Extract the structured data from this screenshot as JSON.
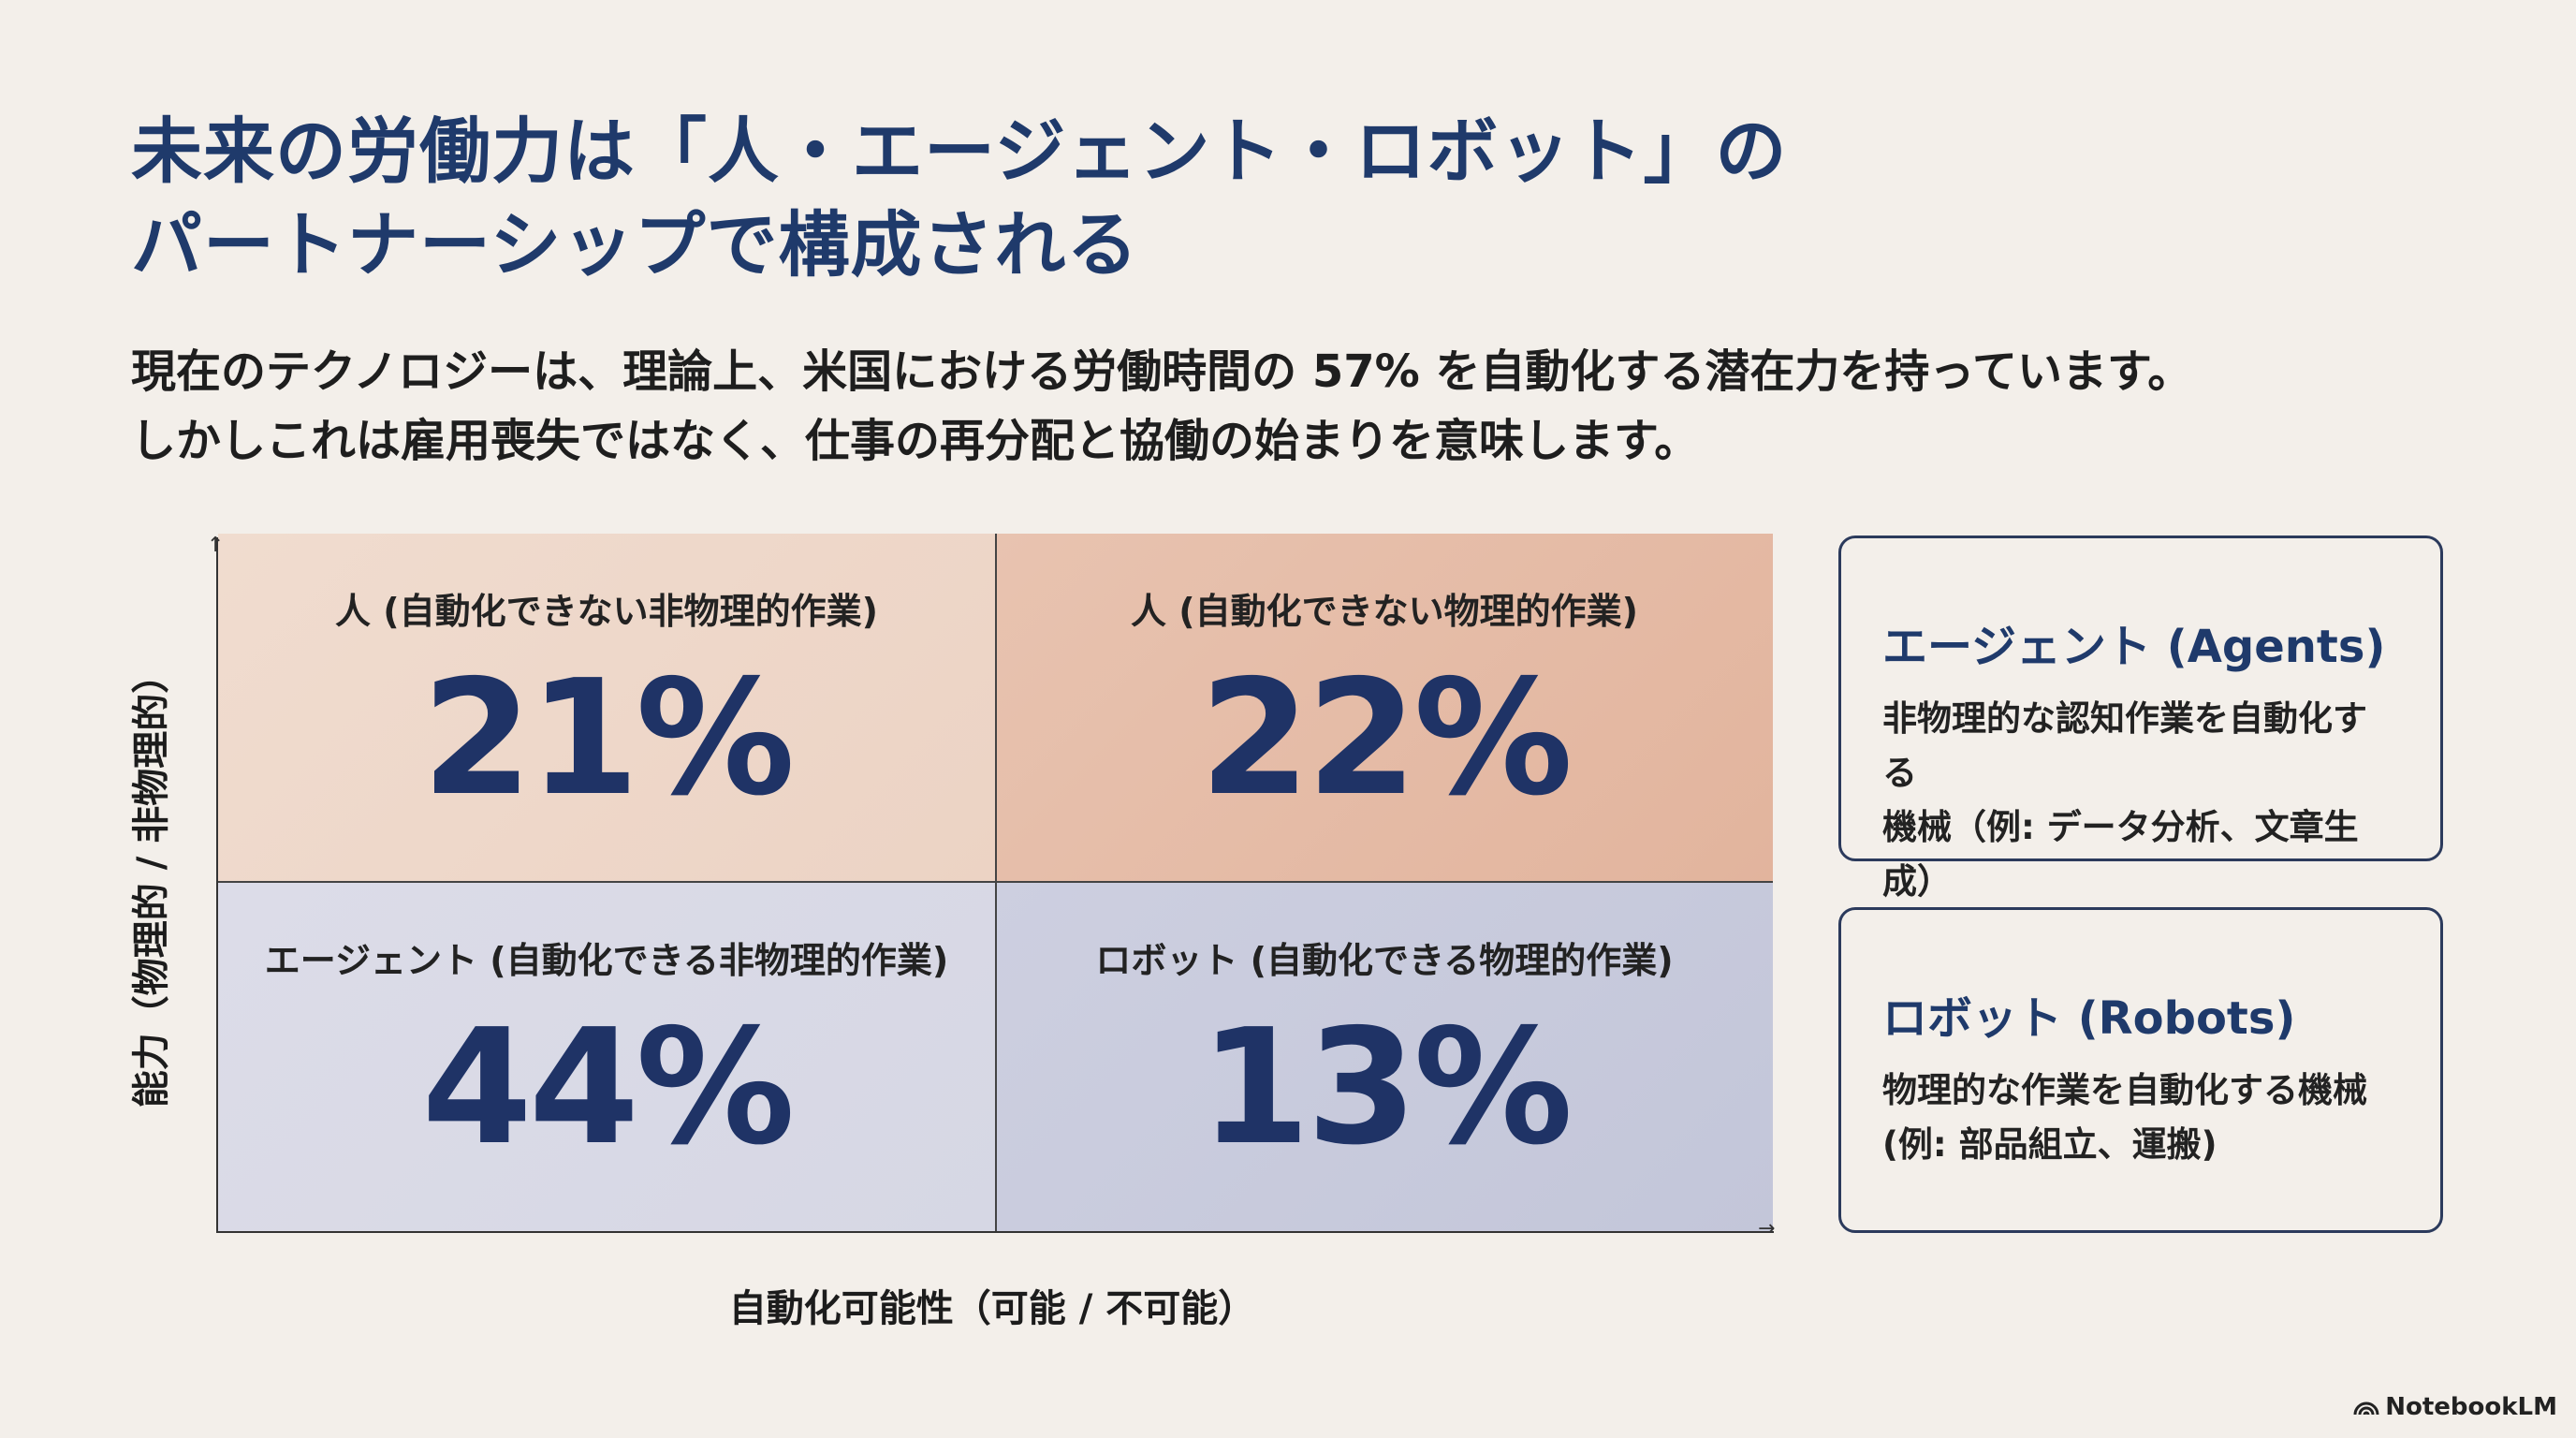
{
  "title": {
    "line1": "未来の労働力は「人・エージェント・ロボット」の",
    "line2": "パートナーシップで構成される"
  },
  "subtitle": {
    "line1": "現在のテクノロジーは、理論上、米国における労働時間の 57% を自動化する潜在力を持っています。",
    "line2": "しかしこれは雇用喪失ではなく、仕事の再分配と協働の始まりを意味します。"
  },
  "matrix": {
    "y_axis_label": "能力（物理的 / 非物理的）",
    "x_axis_label": "自動化可能性（可能 / 不可能）",
    "cells": [
      {
        "label": "人 (自動化できない非物理的作業)",
        "value": "21%"
      },
      {
        "label": "人 (自動化できない物理的作業)",
        "value": "22%"
      },
      {
        "label": "エージェント (自動化できる非物理的作業)",
        "value": "44%"
      },
      {
        "label": "ロボット (自動化できる物理的作業)",
        "value": "13%"
      }
    ]
  },
  "cards": [
    {
      "title": "エージェント (Agents)",
      "desc1": "非物理的な認知作業を自動化する",
      "desc2": "機械（例: データ分析、文章生成）"
    },
    {
      "title": "ロボット (Robots)",
      "desc1": "物理的な作業を自動化する機械",
      "desc2": "(例: 部品組立、運搬)"
    }
  ],
  "brand": {
    "name": "NotebookLM",
    "icon": "notebooklm-logo-icon"
  },
  "colors": {
    "navy": "#1f3366",
    "background": "#f3efea"
  }
}
